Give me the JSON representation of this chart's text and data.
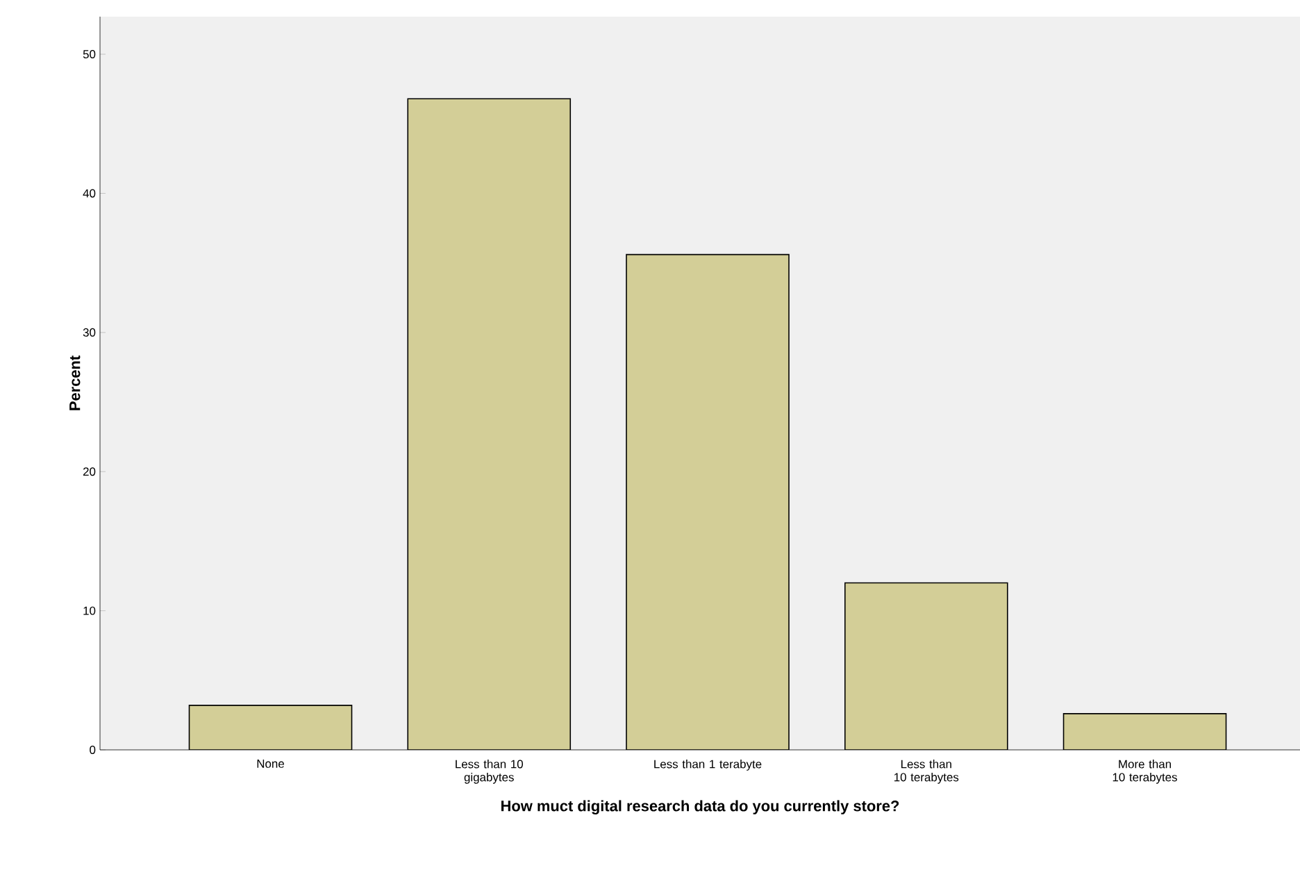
{
  "chart_data": {
    "type": "bar",
    "xlabel": "How muct digital research data do you currently store?",
    "ylabel": "Percent",
    "categories": [
      "None",
      "Less than 10 gigabytes",
      "Less than 1 terabyte",
      "Less than 10 terabytes",
      "More than 10 terabytes"
    ],
    "values": [
      3.2,
      46.8,
      35.6,
      12.0,
      2.6
    ],
    "color": "#d3ce97",
    "ylim": [
      0,
      52.7
    ],
    "yticks": [
      0,
      10,
      20,
      30,
      40,
      50
    ],
    "grid": false
  }
}
